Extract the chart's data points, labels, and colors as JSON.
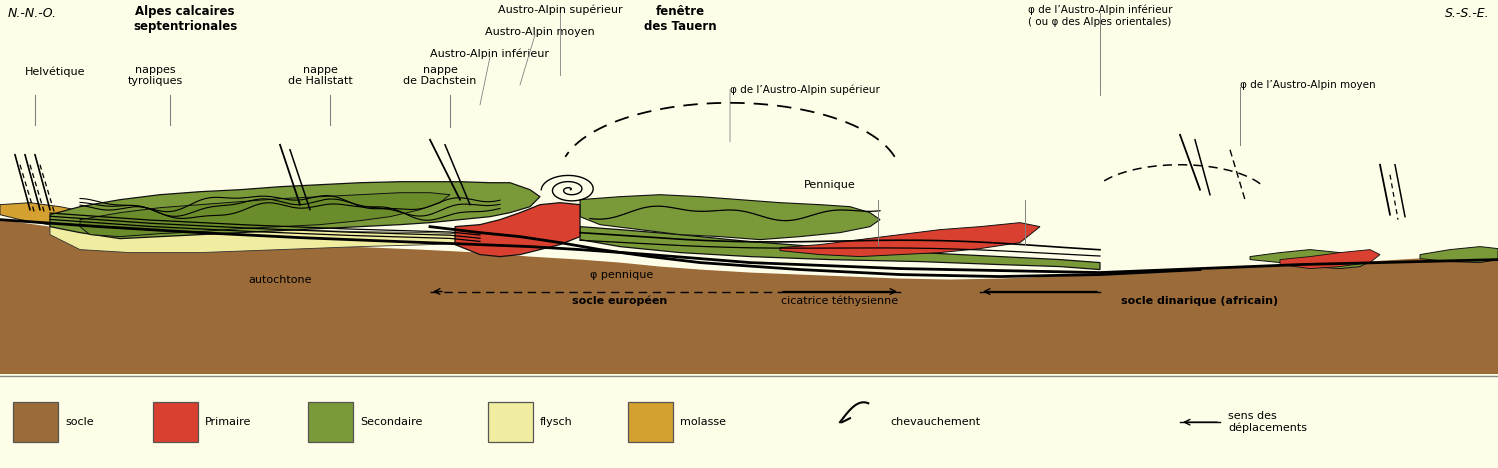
{
  "bg_main": "#FEFEE8",
  "bg_legend": "#FEFEE8",
  "color_socle": "#9B6B3A",
  "color_primaire": "#D94030",
  "color_secondaire": "#7A9A3A",
  "color_secondaire2": "#6B8C2A",
  "color_flysch": "#F0ECA0",
  "color_molasse": "#D4A030",
  "color_border": "#111111",
  "title_nno": "N.-N.-O.",
  "title_sse": "S.-S.-E.",
  "label_helvetique": "Helvétique",
  "label_nappes_tyroliques": "nappes\ntyroliques",
  "label_nappe_hallstatt": "nappe\nde Hallstatt",
  "label_nappe_dachstein": "nappe\nde Dachstein",
  "label_alpes_calcaires": "Alpes calcaires\nseptentrionales",
  "label_austro_sup": "Austro-Alpin supérieur",
  "label_austro_moy": "Austro-Alpin moyen",
  "label_austro_inf": "Austro-Alpin inférieur",
  "label_fenetre": "fenêtre\ndes Tauern",
  "label_phi_austro_sup": "φ de l’Austro-Alpin supérieur",
  "label_phi_austro_inf": "φ de l’Austro-Alpin inférieur\n( ou φ des Alpes orientales)",
  "label_phi_austro_moy": "φ de l’Austro-Alpin moyen",
  "label_pennique": "Pennique",
  "label_phi_pennique": "φ pennique",
  "label_autochtone": "autochtone",
  "legend_socle": "socle",
  "legend_primaire": "Primaire",
  "legend_secondaire": "Secondaire",
  "legend_flysch": "flysch",
  "legend_molasse": "molasse",
  "legend_chevauchement": "chevauchement",
  "legend_sens": "sens des\ndéplacements"
}
